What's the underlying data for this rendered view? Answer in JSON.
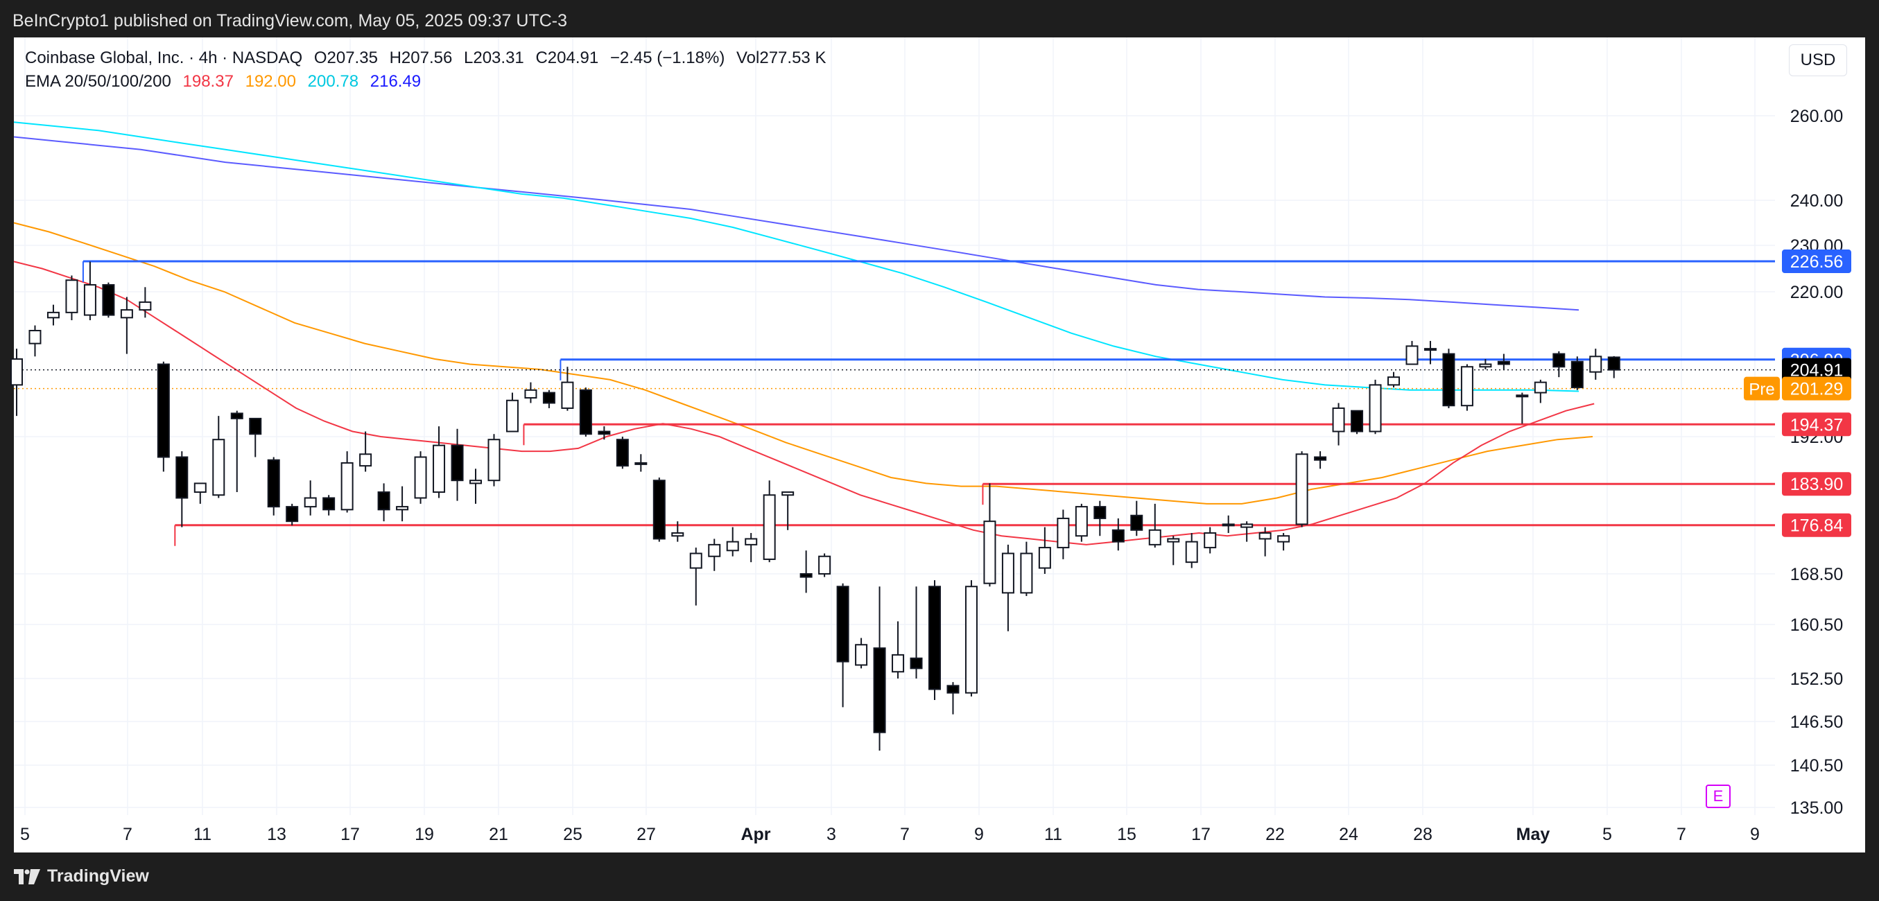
{
  "header": {
    "publisher": "BeInCrypto1 published on TradingView.com, May 05, 2025 09:37 UTC-3"
  },
  "legend": {
    "symbol": "Coinbase Global, Inc. · 4h · NASDAQ",
    "open": "O207.35",
    "high": "H207.56",
    "low": "L203.31",
    "close": "C204.91",
    "change": "−2.45 (−1.18%)",
    "volume": "Vol277.53 K",
    "ema_label": "EMA 20/50/100/200",
    "ema_values": [
      {
        "value": "198.37",
        "color": "#f23645"
      },
      {
        "value": "192.00",
        "color": "#ff9800"
      },
      {
        "value": "200.78",
        "color": "#00e5ff"
      },
      {
        "value": "216.49",
        "color": "#1a1aff"
      }
    ]
  },
  "currency": "USD",
  "badge_letter": "E",
  "footer": {
    "brand": "TradingView"
  },
  "colors": {
    "support": "#f23645",
    "resistance": "#2962ff",
    "ema20": "#f23645",
    "ema50": "#ff9800",
    "ema100": "#00e5ff",
    "ema200": "#5b5bff",
    "pre": "#ff9800",
    "last": "#000000"
  },
  "chart_data": {
    "type": "candlestick",
    "y_ticks": [
      260.0,
      240.0,
      230.0,
      220.0,
      192.0,
      168.5,
      160.5,
      152.5,
      146.5,
      140.5,
      135.0
    ],
    "y_tick_labels": [
      "260.00",
      "240.00",
      "230.00",
      "220.00",
      "192.00",
      "168.50",
      "160.50",
      "152.50",
      "146.50",
      "140.50",
      "135.00"
    ],
    "x_ticks": [
      {
        "label": "5",
        "bold": false
      },
      {
        "label": "7",
        "bold": false
      },
      {
        "label": "11",
        "bold": false
      },
      {
        "label": "13",
        "bold": false
      },
      {
        "label": "17",
        "bold": false
      },
      {
        "label": "19",
        "bold": false
      },
      {
        "label": "21",
        "bold": false
      },
      {
        "label": "25",
        "bold": false
      },
      {
        "label": "27",
        "bold": false
      },
      {
        "label": "Apr",
        "bold": true
      },
      {
        "label": "3",
        "bold": false
      },
      {
        "label": "7",
        "bold": false
      },
      {
        "label": "9",
        "bold": false
      },
      {
        "label": "11",
        "bold": false
      },
      {
        "label": "15",
        "bold": false
      },
      {
        "label": "17",
        "bold": false
      },
      {
        "label": "22",
        "bold": false
      },
      {
        "label": "24",
        "bold": false
      },
      {
        "label": "28",
        "bold": false
      },
      {
        "label": "May",
        "bold": true
      },
      {
        "label": "5",
        "bold": false
      },
      {
        "label": "7",
        "bold": false
      },
      {
        "label": "9",
        "bold": false
      }
    ],
    "candles": [
      {
        "o": 202.0,
        "h": 209.0,
        "l": 196.0,
        "c": 207.0
      },
      {
        "o": 210.0,
        "h": 213.5,
        "l": 207.5,
        "c": 212.5
      },
      {
        "o": 215.0,
        "h": 217.5,
        "l": 213.5,
        "c": 216.0
      },
      {
        "o": 216.0,
        "h": 223.5,
        "l": 214.5,
        "c": 222.5
      },
      {
        "o": 215.5,
        "h": 226.5,
        "l": 214.5,
        "c": 221.5
      },
      {
        "o": 221.5,
        "h": 222.0,
        "l": 215.0,
        "c": 215.5
      },
      {
        "o": 215.0,
        "h": 219.0,
        "l": 208.0,
        "c": 216.5
      },
      {
        "o": 216.5,
        "h": 221.0,
        "l": 215.0,
        "c": 218.0
      },
      {
        "o": 206.0,
        "h": 206.5,
        "l": 186.0,
        "c": 188.5
      },
      {
        "o": 188.5,
        "h": 189.5,
        "l": 176.5,
        "c": 181.5
      },
      {
        "o": 182.5,
        "h": 184.0,
        "l": 180.5,
        "c": 184.0
      },
      {
        "o": 182.0,
        "h": 196.0,
        "l": 181.5,
        "c": 191.5
      },
      {
        "o": 196.5,
        "h": 197.0,
        "l": 182.5,
        "c": 195.5
      },
      {
        "o": 195.5,
        "h": 195.5,
        "l": 188.5,
        "c": 192.5
      },
      {
        "o": 188.0,
        "h": 188.5,
        "l": 178.5,
        "c": 180.0
      },
      {
        "o": 180.0,
        "h": 180.5,
        "l": 176.8,
        "c": 177.5
      },
      {
        "o": 180.0,
        "h": 184.5,
        "l": 178.5,
        "c": 181.5
      },
      {
        "o": 181.5,
        "h": 182.0,
        "l": 178.5,
        "c": 179.5
      },
      {
        "o": 179.5,
        "h": 189.5,
        "l": 179.0,
        "c": 187.5
      },
      {
        "o": 187.0,
        "h": 193.0,
        "l": 186.0,
        "c": 189.0
      },
      {
        "o": 182.5,
        "h": 184.0,
        "l": 177.5,
        "c": 179.5
      },
      {
        "o": 179.5,
        "h": 183.5,
        "l": 177.5,
        "c": 180.0
      },
      {
        "o": 181.5,
        "h": 189.5,
        "l": 180.5,
        "c": 188.5
      },
      {
        "o": 182.5,
        "h": 194.0,
        "l": 181.5,
        "c": 190.5
      },
      {
        "o": 190.5,
        "h": 193.5,
        "l": 181.0,
        "c": 184.5
      },
      {
        "o": 184.0,
        "h": 186.5,
        "l": 180.5,
        "c": 184.5
      },
      {
        "o": 184.5,
        "h": 192.5,
        "l": 183.5,
        "c": 191.5
      },
      {
        "o": 193.0,
        "h": 200.5,
        "l": 193.0,
        "c": 199.0
      },
      {
        "o": 199.5,
        "h": 202.5,
        "l": 198.5,
        "c": 201.0
      },
      {
        "o": 200.5,
        "h": 201.0,
        "l": 197.5,
        "c": 198.5
      },
      {
        "o": 197.5,
        "h": 205.5,
        "l": 197.0,
        "c": 202.5
      },
      {
        "o": 201.0,
        "h": 201.5,
        "l": 192.0,
        "c": 192.5
      },
      {
        "o": 193.0,
        "h": 194.0,
        "l": 191.5,
        "c": 192.5
      },
      {
        "o": 191.5,
        "h": 192.0,
        "l": 186.5,
        "c": 187.0
      },
      {
        "o": 187.5,
        "h": 189.0,
        "l": 186.0,
        "c": 187.5
      },
      {
        "o": 184.5,
        "h": 185.0,
        "l": 174.0,
        "c": 174.5
      },
      {
        "o": 175.0,
        "h": 177.5,
        "l": 174.0,
        "c": 175.5
      },
      {
        "o": 169.5,
        "h": 173.0,
        "l": 163.5,
        "c": 172.0
      },
      {
        "o": 171.5,
        "h": 174.5,
        "l": 169.0,
        "c": 173.5
      },
      {
        "o": 172.5,
        "h": 176.5,
        "l": 171.5,
        "c": 174.0
      },
      {
        "o": 173.5,
        "h": 175.5,
        "l": 170.5,
        "c": 174.5
      },
      {
        "o": 171.0,
        "h": 184.5,
        "l": 170.5,
        "c": 182.0
      },
      {
        "o": 182.0,
        "h": 182.5,
        "l": 176.0,
        "c": 182.5
      },
      {
        "o": 168.5,
        "h": 172.5,
        "l": 165.5,
        "c": 168.0
      },
      {
        "o": 168.5,
        "h": 172.0,
        "l": 168.0,
        "c": 171.5
      },
      {
        "o": 166.5,
        "h": 167.0,
        "l": 148.5,
        "c": 155.0
      },
      {
        "o": 154.5,
        "h": 158.5,
        "l": 154.0,
        "c": 157.5
      },
      {
        "o": 157.0,
        "h": 166.5,
        "l": 142.5,
        "c": 145.0
      },
      {
        "o": 153.5,
        "h": 161.0,
        "l": 152.5,
        "c": 156.0
      },
      {
        "o": 155.5,
        "h": 166.5,
        "l": 152.5,
        "c": 154.0
      },
      {
        "o": 166.5,
        "h": 167.5,
        "l": 149.5,
        "c": 151.0
      },
      {
        "o": 151.5,
        "h": 152.0,
        "l": 147.5,
        "c": 150.5
      },
      {
        "o": 150.5,
        "h": 167.5,
        "l": 150.0,
        "c": 166.5
      },
      {
        "o": 167.0,
        "h": 184.0,
        "l": 166.5,
        "c": 177.5
      },
      {
        "o": 165.5,
        "h": 173.5,
        "l": 159.5,
        "c": 172.0
      },
      {
        "o": 165.5,
        "h": 174.0,
        "l": 165.0,
        "c": 172.0
      },
      {
        "o": 169.5,
        "h": 176.5,
        "l": 168.5,
        "c": 173.0
      },
      {
        "o": 173.0,
        "h": 179.5,
        "l": 171.0,
        "c": 178.0
      },
      {
        "o": 175.0,
        "h": 180.5,
        "l": 174.0,
        "c": 180.0
      },
      {
        "o": 180.0,
        "h": 181.0,
        "l": 175.0,
        "c": 178.0
      },
      {
        "o": 176.0,
        "h": 178.0,
        "l": 172.5,
        "c": 174.0
      },
      {
        "o": 178.5,
        "h": 181.0,
        "l": 175.0,
        "c": 176.0
      },
      {
        "o": 173.5,
        "h": 180.5,
        "l": 173.0,
        "c": 176.0
      },
      {
        "o": 174.0,
        "h": 175.0,
        "l": 170.0,
        "c": 174.5
      },
      {
        "o": 170.5,
        "h": 175.5,
        "l": 169.5,
        "c": 174.0
      },
      {
        "o": 173.0,
        "h": 176.5,
        "l": 172.0,
        "c": 175.5
      },
      {
        "o": 177.0,
        "h": 178.5,
        "l": 175.5,
        "c": 177.0
      },
      {
        "o": 176.5,
        "h": 177.5,
        "l": 174.0,
        "c": 177.0
      },
      {
        "o": 174.5,
        "h": 176.5,
        "l": 171.5,
        "c": 175.5
      },
      {
        "o": 174.0,
        "h": 175.5,
        "l": 172.5,
        "c": 175.0
      },
      {
        "o": 177.0,
        "h": 189.5,
        "l": 176.5,
        "c": 189.0
      },
      {
        "o": 188.5,
        "h": 189.5,
        "l": 186.5,
        "c": 188.0
      },
      {
        "o": 193.0,
        "h": 198.5,
        "l": 190.5,
        "c": 197.5
      },
      {
        "o": 197.0,
        "h": 197.0,
        "l": 192.5,
        "c": 193.0
      },
      {
        "o": 193.0,
        "h": 203.0,
        "l": 192.5,
        "c": 202.0
      },
      {
        "o": 202.0,
        "h": 204.5,
        "l": 201.5,
        "c": 203.5
      },
      {
        "o": 206.0,
        "h": 210.5,
        "l": 206.0,
        "c": 209.5
      },
      {
        "o": 209.0,
        "h": 210.5,
        "l": 206.0,
        "c": 209.0
      },
      {
        "o": 208.0,
        "h": 209.0,
        "l": 197.5,
        "c": 198.0
      },
      {
        "o": 198.0,
        "h": 206.0,
        "l": 197.0,
        "c": 205.5
      },
      {
        "o": 205.5,
        "h": 207.0,
        "l": 205.0,
        "c": 206.0
      },
      {
        "o": 206.5,
        "h": 208.0,
        "l": 205.0,
        "c": 206.0
      },
      {
        "o": 200.0,
        "h": 200.5,
        "l": 194.5,
        "c": 200.0
      },
      {
        "o": 200.5,
        "h": 203.0,
        "l": 198.5,
        "c": 202.5
      },
      {
        "o": 208.0,
        "h": 208.5,
        "l": 203.5,
        "c": 205.5
      },
      {
        "o": 206.5,
        "h": 207.5,
        "l": 201.0,
        "c": 201.5
      },
      {
        "o": 204.5,
        "h": 209.0,
        "l": 203.0,
        "c": 207.5
      },
      {
        "o": 207.35,
        "h": 207.56,
        "l": 203.31,
        "c": 204.91
      }
    ],
    "ema": {
      "ema20": [
        226.5,
        225.0,
        223.0,
        221.0,
        218.5,
        215.0,
        211.5,
        208.0,
        204.5,
        201.0,
        197.5,
        195.0,
        193.0,
        192.0,
        191.5,
        191.0,
        190.5,
        190.0,
        189.5,
        189.5,
        190.0,
        192.0,
        193.5,
        194.5,
        193.5,
        192.0,
        190.0,
        188.0,
        186.0,
        184.0,
        182.0,
        180.5,
        179.0,
        177.5,
        176.0,
        175.0,
        174.5,
        174.0,
        173.5,
        174.0,
        174.5,
        175.0,
        175.5,
        175.0,
        175.5,
        176.0,
        177.0,
        178.5,
        180.0,
        181.5,
        184.0,
        187.5,
        190.5,
        193.0,
        195.0,
        197.0,
        198.37
      ],
      "ema50": [
        235.0,
        233.0,
        230.5,
        228.0,
        225.5,
        222.5,
        220.0,
        217.0,
        214.0,
        212.0,
        210.0,
        208.5,
        207.0,
        206.0,
        205.5,
        205.0,
        204.0,
        203.0,
        201.0,
        198.5,
        196.0,
        193.5,
        191.0,
        189.0,
        187.0,
        185.0,
        184.0,
        183.5,
        183.5,
        183.0,
        182.5,
        182.0,
        181.5,
        181.0,
        180.5,
        180.5,
        181.5,
        183.0,
        184.0,
        185.0,
        186.5,
        188.0,
        189.5,
        190.5,
        191.5,
        192.0
      ],
      "ema100": [
        258.5,
        257.5,
        256.5,
        255.0,
        253.5,
        252.0,
        250.5,
        249.0,
        247.5,
        246.0,
        244.5,
        243.0,
        241.5,
        240.5,
        239.0,
        237.5,
        236.0,
        234.0,
        231.5,
        229.0,
        226.5,
        224.0,
        221.0,
        218.0,
        215.0,
        212.0,
        209.5,
        207.5,
        206.0,
        204.5,
        203.0,
        202.0,
        201.5,
        201.0,
        201.0,
        201.0,
        201.0,
        200.78
      ],
      "ema200": [
        255.0,
        254.0,
        253.0,
        252.0,
        250.5,
        249.0,
        248.0,
        247.0,
        246.0,
        245.0,
        244.0,
        243.0,
        242.0,
        241.0,
        240.0,
        239.0,
        238.0,
        236.5,
        235.0,
        233.5,
        232.0,
        230.5,
        229.0,
        227.5,
        226.0,
        224.5,
        223.0,
        221.5,
        220.5,
        220.0,
        219.5,
        219.0,
        218.8,
        218.5,
        218.0,
        217.5,
        217.0,
        216.49
      ]
    },
    "levels": [
      {
        "value": 226.56,
        "label": "226.56",
        "kind": "resistance",
        "from_candle": 4
      },
      {
        "value": 206.9,
        "label": "206.90",
        "kind": "resistance",
        "from_candle": 30
      },
      {
        "value": 194.37,
        "label": "194.37",
        "kind": "support",
        "from_candle": 28
      },
      {
        "value": 183.9,
        "label": "183.90",
        "kind": "support",
        "from_candle": 53
      },
      {
        "value": 176.84,
        "label": "176.84",
        "kind": "support",
        "from_candle": 9
      }
    ],
    "last_price": {
      "value": 204.91,
      "label": "204.91"
    },
    "pre_price": {
      "value": 201.29,
      "label": "201.29",
      "tag": "Pre"
    }
  }
}
